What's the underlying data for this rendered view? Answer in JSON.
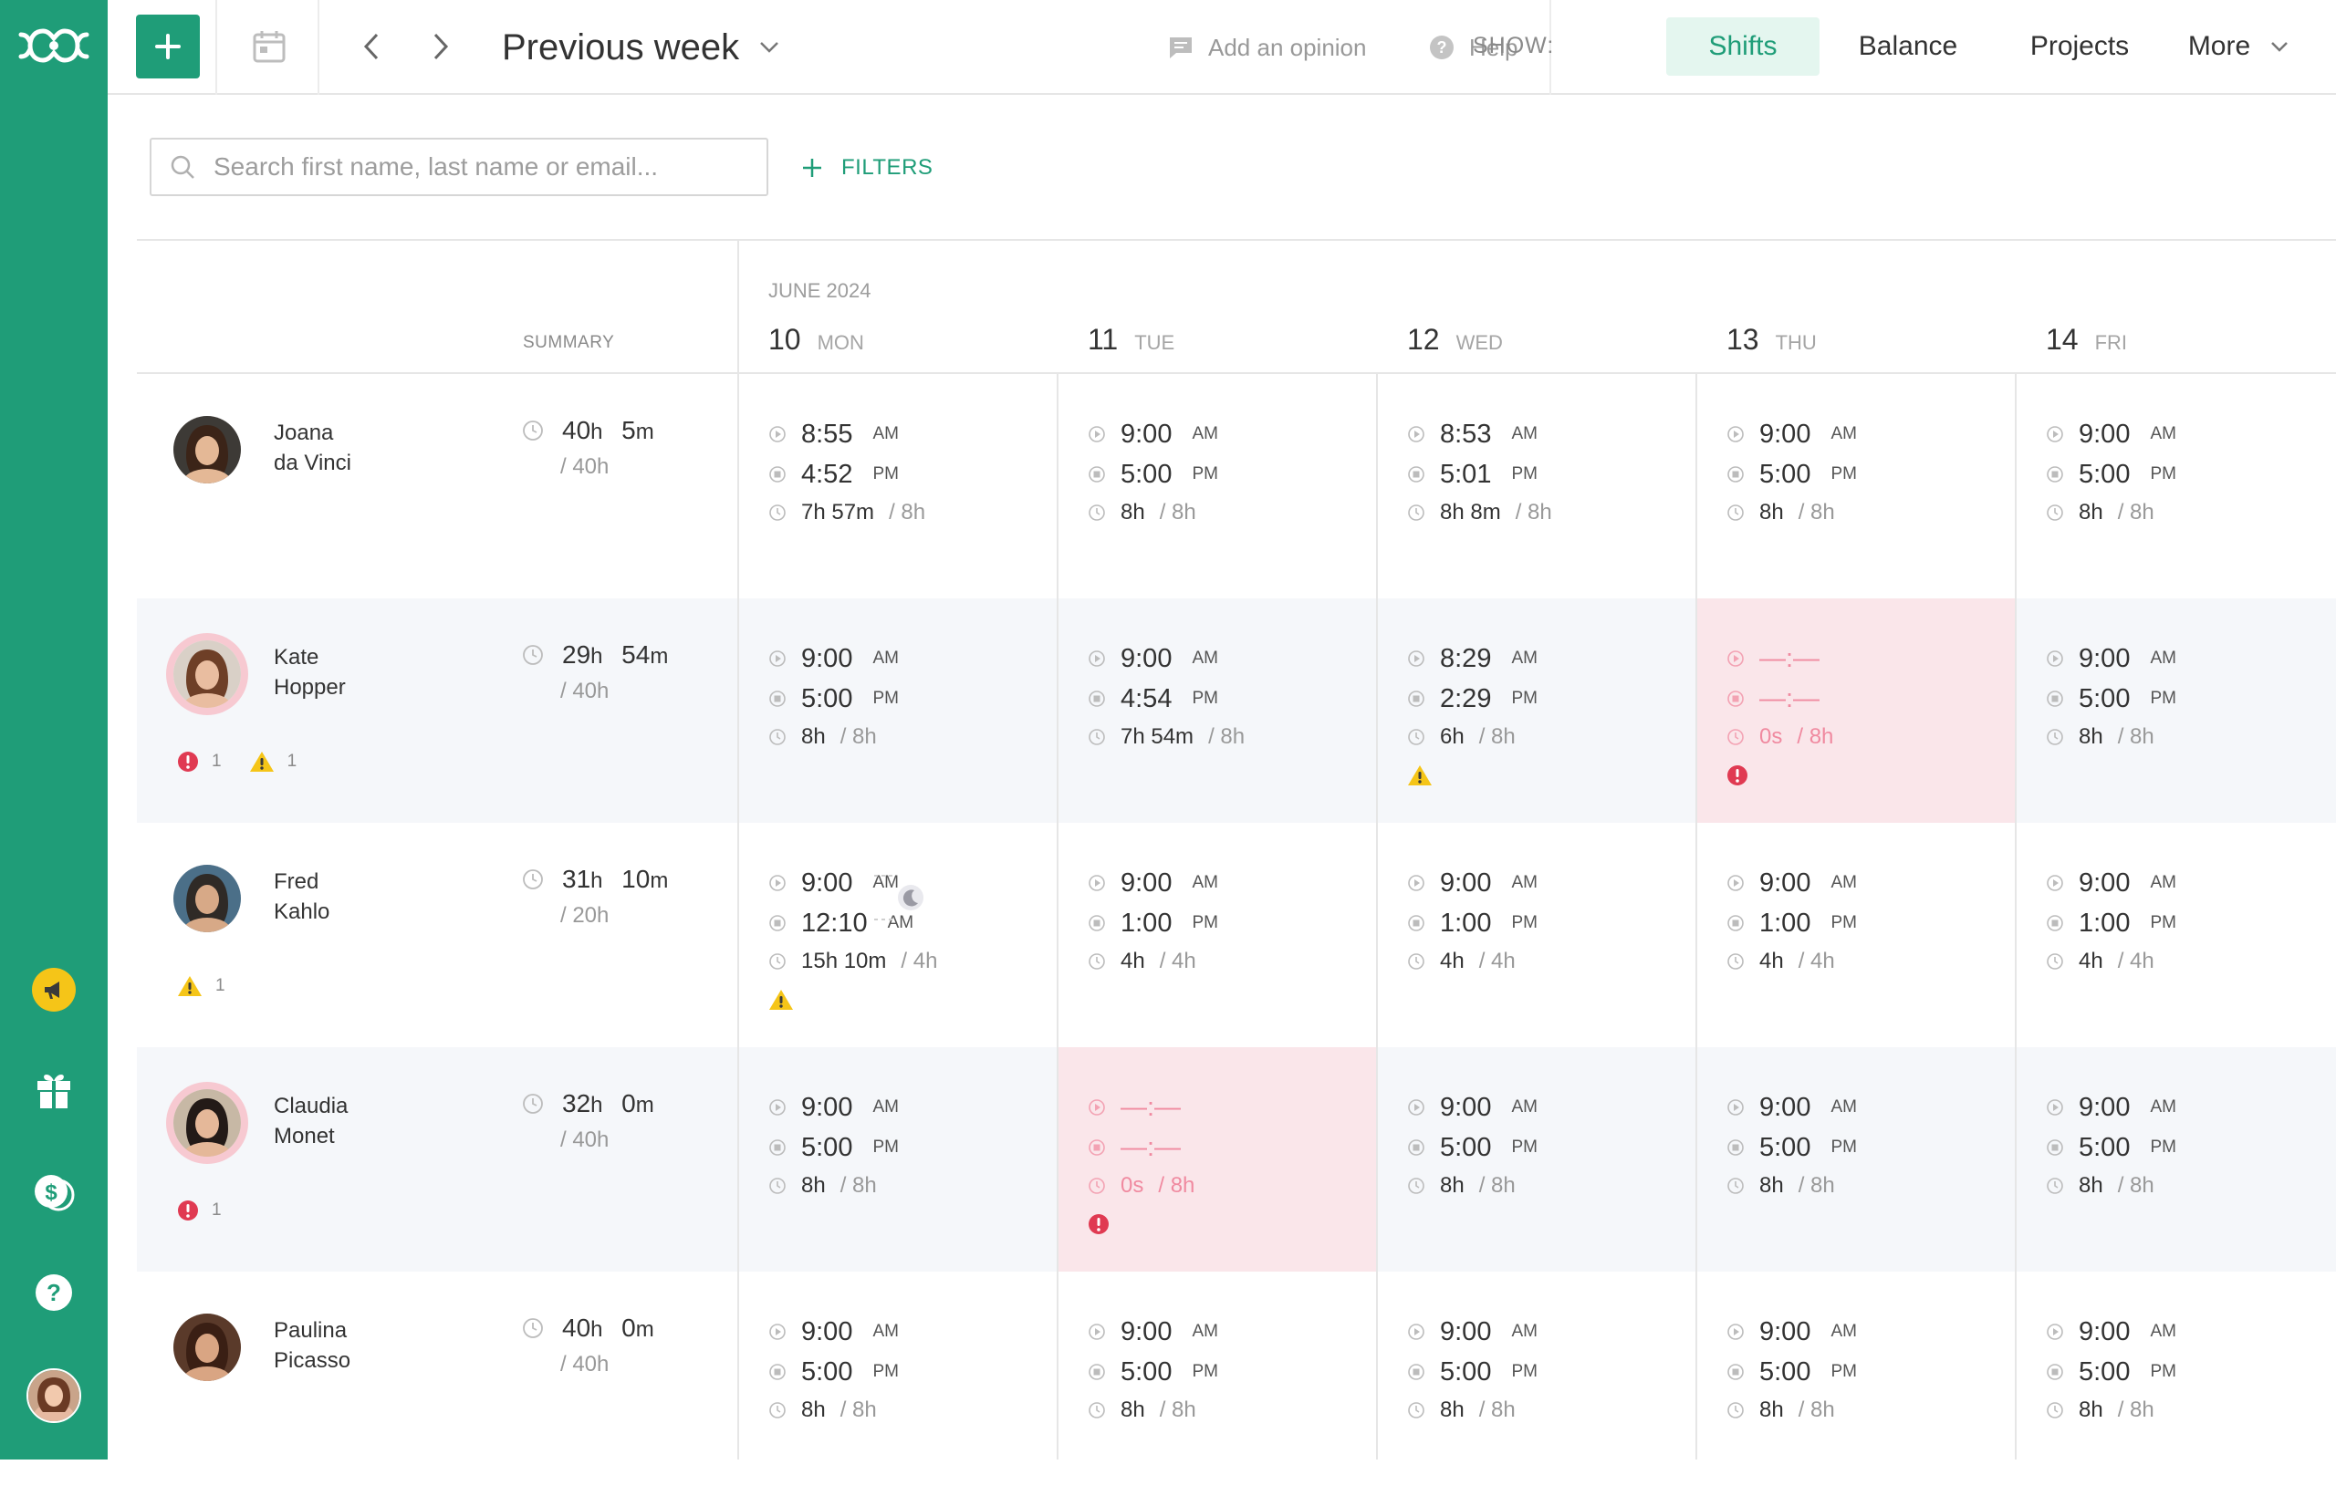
{
  "topbar": {
    "period_label": "Previous week",
    "add_opinion": "Add an opinion",
    "help": "Help",
    "show_label": "SHOW:",
    "views": [
      "Shifts",
      "Balance",
      "Projects",
      "More"
    ],
    "active_view": "Shifts"
  },
  "search": {
    "placeholder": "Search first name, last name or email..."
  },
  "filters_label": "FILTERS",
  "grid": {
    "month_label": "JUNE 2024",
    "summary_label": "SUMMARY",
    "days": [
      {
        "num": "10",
        "dow": "MON"
      },
      {
        "num": "11",
        "dow": "TUE"
      },
      {
        "num": "12",
        "dow": "WED"
      },
      {
        "num": "13",
        "dow": "THU"
      },
      {
        "num": "14",
        "dow": "FRI"
      }
    ]
  },
  "employees": [
    {
      "first": "Joana",
      "last": "da Vinci",
      "summary": {
        "h": "40",
        "m": "5",
        "target": "/ 40h"
      },
      "badges": [],
      "days": [
        {
          "start": "8:55",
          "start_ap": "AM",
          "end": "4:52",
          "end_ap": "PM",
          "dur": "7h 57m",
          "exp": "/ 8h"
        },
        {
          "start": "9:00",
          "start_ap": "AM",
          "end": "5:00",
          "end_ap": "PM",
          "dur": "8h",
          "exp": "/ 8h"
        },
        {
          "start": "8:53",
          "start_ap": "AM",
          "end": "5:01",
          "end_ap": "PM",
          "dur": "8h 8m",
          "exp": "/ 8h"
        },
        {
          "start": "9:00",
          "start_ap": "AM",
          "end": "5:00",
          "end_ap": "PM",
          "dur": "8h",
          "exp": "/ 8h"
        },
        {
          "start": "9:00",
          "start_ap": "AM",
          "end": "5:00",
          "end_ap": "PM",
          "dur": "8h",
          "exp": "/ 8h"
        }
      ]
    },
    {
      "first": "Kate",
      "last": "Hopper",
      "summary": {
        "h": "29",
        "m": "54",
        "target": "/ 40h"
      },
      "badges": [
        {
          "type": "error",
          "count": "1"
        },
        {
          "type": "warning",
          "count": "1"
        }
      ],
      "days": [
        {
          "start": "9:00",
          "start_ap": "AM",
          "end": "5:00",
          "end_ap": "PM",
          "dur": "8h",
          "exp": "/ 8h"
        },
        {
          "start": "9:00",
          "start_ap": "AM",
          "end": "4:54",
          "end_ap": "PM",
          "dur": "7h 54m",
          "exp": "/ 8h"
        },
        {
          "start": "8:29",
          "start_ap": "AM",
          "end": "2:29",
          "end_ap": "PM",
          "dur": "6h",
          "exp": "/ 8h",
          "flag": "warning"
        },
        {
          "missing": true,
          "start": "—:—",
          "start_ap": "",
          "end": "—:—",
          "end_ap": "",
          "dur": "0s",
          "exp": "/ 8h",
          "flag": "error"
        },
        {
          "start": "9:00",
          "start_ap": "AM",
          "end": "5:00",
          "end_ap": "PM",
          "dur": "8h",
          "exp": "/ 8h"
        }
      ]
    },
    {
      "first": "Fred",
      "last": "Kahlo",
      "summary": {
        "h": "31",
        "m": "10",
        "target": "/ 20h"
      },
      "badges": [
        {
          "type": "warning",
          "count": "1"
        }
      ],
      "days": [
        {
          "start": "9:00",
          "start_ap": "AM",
          "end": "12:10",
          "end_ap": "AM",
          "dur": "15h 10m",
          "exp": "/ 4h",
          "flag": "warning",
          "overnight": true
        },
        {
          "start": "9:00",
          "start_ap": "AM",
          "end": "1:00",
          "end_ap": "PM",
          "dur": "4h",
          "exp": "/ 4h"
        },
        {
          "start": "9:00",
          "start_ap": "AM",
          "end": "1:00",
          "end_ap": "PM",
          "dur": "4h",
          "exp": "/ 4h"
        },
        {
          "start": "9:00",
          "start_ap": "AM",
          "end": "1:00",
          "end_ap": "PM",
          "dur": "4h",
          "exp": "/ 4h"
        },
        {
          "start": "9:00",
          "start_ap": "AM",
          "end": "1:00",
          "end_ap": "PM",
          "dur": "4h",
          "exp": "/ 4h"
        }
      ]
    },
    {
      "first": "Claudia",
      "last": "Monet",
      "summary": {
        "h": "32",
        "m": "0",
        "target": "/ 40h"
      },
      "badges": [
        {
          "type": "error",
          "count": "1"
        }
      ],
      "days": [
        {
          "start": "9:00",
          "start_ap": "AM",
          "end": "5:00",
          "end_ap": "PM",
          "dur": "8h",
          "exp": "/ 8h"
        },
        {
          "missing": true,
          "start": "—:—",
          "start_ap": "",
          "end": "—:—",
          "end_ap": "",
          "dur": "0s",
          "exp": "/ 8h",
          "flag": "error"
        },
        {
          "start": "9:00",
          "start_ap": "AM",
          "end": "5:00",
          "end_ap": "PM",
          "dur": "8h",
          "exp": "/ 8h"
        },
        {
          "start": "9:00",
          "start_ap": "AM",
          "end": "5:00",
          "end_ap": "PM",
          "dur": "8h",
          "exp": "/ 8h"
        },
        {
          "start": "9:00",
          "start_ap": "AM",
          "end": "5:00",
          "end_ap": "PM",
          "dur": "8h",
          "exp": "/ 8h"
        }
      ]
    },
    {
      "first": "Paulina",
      "last": "Picasso",
      "summary": {
        "h": "40",
        "m": "0",
        "target": "/ 40h"
      },
      "badges": [],
      "days": [
        {
          "start": "9:00",
          "start_ap": "AM",
          "end": "5:00",
          "end_ap": "PM",
          "dur": "8h",
          "exp": "/ 8h"
        },
        {
          "start": "9:00",
          "start_ap": "AM",
          "end": "5:00",
          "end_ap": "PM",
          "dur": "8h",
          "exp": "/ 8h"
        },
        {
          "start": "9:00",
          "start_ap": "AM",
          "end": "5:00",
          "end_ap": "PM",
          "dur": "8h",
          "exp": "/ 8h"
        },
        {
          "start": "9:00",
          "start_ap": "AM",
          "end": "5:00",
          "end_ap": "PM",
          "dur": "8h",
          "exp": "/ 8h"
        },
        {
          "start": "9:00",
          "start_ap": "AM",
          "end": "5:00",
          "end_ap": "PM",
          "dur": "8h",
          "exp": "/ 8h"
        }
      ]
    }
  ],
  "colors": {
    "brand": "#1f9d78",
    "missing_bg": "#fae6ea",
    "error": "#e03a52",
    "warning": "#f5c518"
  },
  "icons": [
    "logo-icon",
    "plus-icon",
    "calendar-icon",
    "chevron-left-icon",
    "chevron-right-icon",
    "chevron-down-icon",
    "comment-icon",
    "help-icon",
    "search-icon",
    "megaphone-icon",
    "gift-icon",
    "money-icon",
    "clock-icon",
    "play-icon",
    "stop-icon",
    "error-icon",
    "warning-icon",
    "moon-icon"
  ]
}
